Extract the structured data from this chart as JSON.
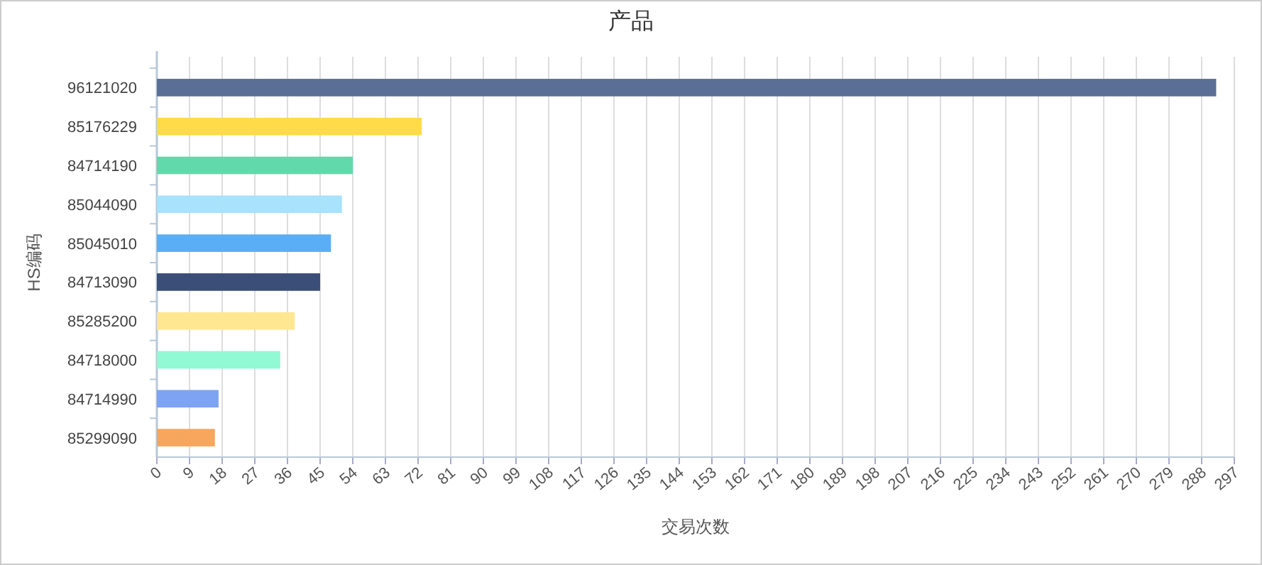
{
  "chart_data": {
    "type": "bar",
    "orientation": "horizontal",
    "title": "产品",
    "xlabel": "交易次数",
    "ylabel": "HS编码",
    "categories": [
      "96121020",
      "85176229",
      "84714190",
      "85044090",
      "85045010",
      "84713090",
      "85285200",
      "84718000",
      "84714990",
      "85299090"
    ],
    "values": [
      292,
      73,
      54,
      51,
      48,
      45,
      38,
      34,
      17,
      16
    ],
    "colors": [
      "#5b6e96",
      "#ffdb4a",
      "#62d9aa",
      "#a8e2fb",
      "#5aaef5",
      "#3a4e78",
      "#ffe792",
      "#91f9d3",
      "#7da3f2",
      "#f7a65e"
    ],
    "xlim": [
      0,
      297
    ],
    "xticks": [
      0,
      9,
      18,
      27,
      36,
      45,
      54,
      63,
      72,
      81,
      90,
      99,
      108,
      117,
      126,
      135,
      144,
      153,
      162,
      171,
      180,
      189,
      198,
      207,
      216,
      225,
      234,
      243,
      252,
      261,
      270,
      279,
      288,
      297
    ],
    "grid": "x"
  }
}
